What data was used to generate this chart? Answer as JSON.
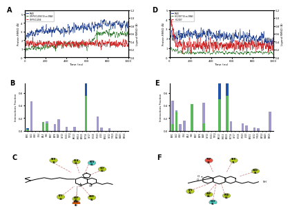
{
  "panel_labels": [
    "A",
    "B",
    "C",
    "D",
    "E",
    "F"
  ],
  "background_color": "#f5f5f5",
  "line_colors": {
    "blue": "#1a3a8c",
    "green": "#2d7a2d",
    "red": "#cc2222"
  },
  "bar_colors": {
    "purple": "#a09ac8",
    "green": "#5cb85c",
    "blue": "#2255aa"
  },
  "ylabel_line_left": "Protein RMSD (Å)",
  "ylabel_line_right": "Ligand RMSD (Å)",
  "xlabel_line": "Time (ns)",
  "ylabel_bar": "Interactions Fraction",
  "legend_A": [
    "5RA3",
    "OMPS/CLOSE 5S as 5RA3",
    "OMPS/CLOSE"
  ],
  "legend_D": [
    "5RA3",
    "HC2007 5S as 5RA3",
    "HC2007"
  ],
  "barB_residues": [
    "SER1",
    "GLU2",
    "GLN3",
    "LYS4",
    "VAL5",
    "HIS6",
    "SER7",
    "ASP8",
    "ALA9",
    "GLY10",
    "LEU11",
    "TRP12",
    "ARG13",
    "PHE14",
    "ASN15",
    "MET16",
    "GLY17",
    "LYS18",
    "CYS19",
    "ILE20",
    "SER21",
    "GLY22",
    "THR23",
    "ASP24",
    "ALA25",
    "SER26"
  ],
  "barE_residues": [
    "SER1",
    "GLU2",
    "GLN3",
    "LYS4",
    "VAL5",
    "HIS6",
    "SER7",
    "ASP8",
    "ALA9",
    "GLY10",
    "LEU11",
    "TRP12",
    "ARG13",
    "PHE14",
    "ASN15",
    "MET16",
    "GLY17",
    "LYS18",
    "CYS19",
    "ILE20",
    "SER21",
    "GLY22",
    "THR23",
    "ASP24",
    "ALA25",
    "SER26"
  ],
  "purple_B": [
    0.02,
    0.46,
    0.0,
    0.0,
    0.13,
    0.15,
    0.0,
    0.1,
    0.18,
    0.0,
    0.06,
    0.0,
    0.06,
    0.0,
    0.0,
    0.18,
    0.0,
    0.0,
    0.22,
    0.05,
    0.0,
    0.04,
    0.0,
    0.0,
    0.0,
    0.0
  ],
  "green_B": [
    0.02,
    0.0,
    0.0,
    0.0,
    0.14,
    0.12,
    0.0,
    0.0,
    0.0,
    0.0,
    0.0,
    0.0,
    0.0,
    0.0,
    0.0,
    0.55,
    0.0,
    0.0,
    0.0,
    0.0,
    0.0,
    0.0,
    0.0,
    0.0,
    0.0,
    0.0
  ],
  "blue_B": [
    0.02,
    0.0,
    0.0,
    0.0,
    0.0,
    0.0,
    0.0,
    0.0,
    0.0,
    0.0,
    0.0,
    0.0,
    0.0,
    0.0,
    0.0,
    0.22,
    0.0,
    0.0,
    0.0,
    0.0,
    0.0,
    0.0,
    0.0,
    0.0,
    0.0,
    0.0
  ],
  "purple_E": [
    0.48,
    0.32,
    0.1,
    0.16,
    0.0,
    0.28,
    0.0,
    0.0,
    0.44,
    0.0,
    0.0,
    0.0,
    0.42,
    0.0,
    0.45,
    0.15,
    0.0,
    0.0,
    0.12,
    0.08,
    0.0,
    0.05,
    0.04,
    0.0,
    0.0,
    0.3
  ],
  "green_E": [
    0.1,
    0.3,
    0.0,
    0.0,
    0.0,
    0.42,
    0.0,
    0.0,
    0.12,
    0.0,
    0.0,
    0.0,
    0.5,
    0.0,
    0.55,
    0.0,
    0.0,
    0.0,
    0.0,
    0.0,
    0.0,
    0.0,
    0.0,
    0.0,
    0.0,
    0.0
  ],
  "blue_E": [
    0.0,
    0.0,
    0.0,
    0.0,
    0.0,
    0.0,
    0.0,
    0.0,
    0.0,
    0.0,
    0.0,
    0.0,
    0.4,
    0.0,
    0.45,
    0.0,
    0.0,
    0.0,
    0.0,
    0.0,
    0.0,
    0.0,
    0.0,
    0.0,
    0.0,
    0.0
  ]
}
